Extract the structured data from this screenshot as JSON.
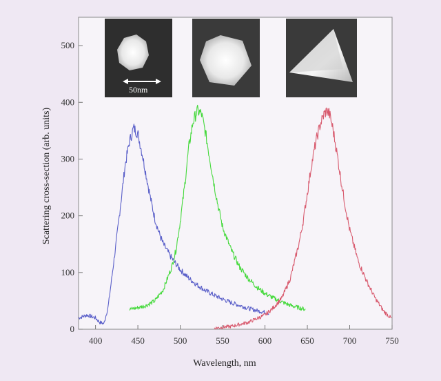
{
  "chart_data": {
    "type": "line",
    "xlabel": "Wavelength, nm",
    "ylabel": "Scattering cross-section (arb. units)",
    "xlim": [
      380,
      750
    ],
    "ylim": [
      0,
      550
    ],
    "x_ticks": [
      400,
      450,
      500,
      550,
      600,
      650,
      700,
      750
    ],
    "y_ticks": [
      0,
      100,
      200,
      300,
      400,
      500
    ],
    "grid": false,
    "series": [
      {
        "color": "#5a5fc9",
        "x": [
          380,
          390,
          400,
          405,
          410,
          415,
          420,
          425,
          430,
          435,
          440,
          445,
          450,
          455,
          460,
          465,
          470,
          475,
          480,
          490,
          500,
          510,
          520,
          530,
          540,
          550,
          560,
          570,
          580,
          590,
          600,
          605
        ],
        "y": [
          20,
          25,
          20,
          12,
          10,
          40,
          100,
          160,
          225,
          290,
          330,
          355,
          345,
          310,
          270,
          230,
          195,
          170,
          150,
          125,
          105,
          90,
          78,
          68,
          60,
          53,
          47,
          42,
          37,
          33,
          30,
          28
        ]
      },
      {
        "color": "#45d93c",
        "x": [
          440,
          450,
          460,
          470,
          480,
          490,
          495,
          500,
          505,
          510,
          515,
          520,
          525,
          530,
          535,
          540,
          545,
          550,
          560,
          570,
          580,
          590,
          600,
          610,
          620,
          630,
          640,
          648
        ],
        "y": [
          35,
          38,
          42,
          50,
          70,
          110,
          140,
          190,
          250,
          320,
          365,
          385,
          380,
          345,
          300,
          255,
          215,
          180,
          140,
          110,
          90,
          75,
          63,
          55,
          48,
          42,
          38,
          35
        ]
      },
      {
        "color": "#d85a6e",
        "x": [
          540,
          560,
          580,
          600,
          610,
          620,
          630,
          640,
          645,
          650,
          655,
          660,
          665,
          670,
          673,
          676,
          680,
          685,
          690,
          695,
          700,
          710,
          720,
          730,
          740,
          750
        ],
        "y": [
          2,
          5,
          12,
          25,
          38,
          55,
          90,
          150,
          190,
          240,
          290,
          330,
          360,
          380,
          385,
          380,
          355,
          310,
          260,
          215,
          175,
          120,
          85,
          55,
          32,
          18
        ]
      }
    ],
    "inset_scale_label": "50nm"
  }
}
